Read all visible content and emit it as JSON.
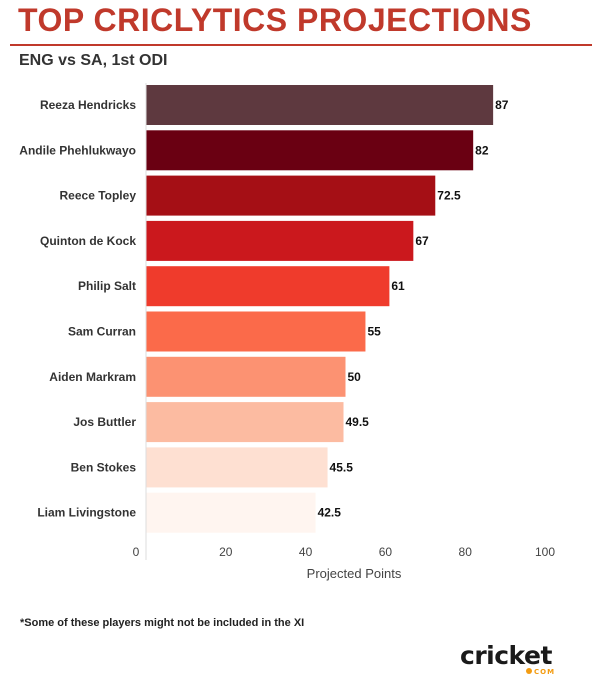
{
  "header": {
    "title": "TOP CRICLYTICS PROJECTIONS",
    "subtitle": "ENG vs SA, 1st ODI"
  },
  "chart_data": {
    "type": "bar",
    "orientation": "horizontal",
    "categories": [
      "Reeza Hendricks",
      "Andile Phehlukwayo",
      "Reece Topley",
      "Quinton de Kock",
      "Philip Salt",
      "Sam Curran",
      "Aiden Markram",
      "Jos Buttler",
      "Ben Stokes",
      "Liam Livingstone"
    ],
    "values": [
      87,
      82,
      72.5,
      67,
      61,
      55,
      50,
      49.5,
      45.5,
      42.5
    ],
    "value_labels": [
      "87",
      "82",
      "72.5",
      "67",
      "61",
      "55",
      "50",
      "49.5",
      "45.5",
      "42.5"
    ],
    "colors": [
      "#5e393f",
      "#6a0012",
      "#a50f15",
      "#cb181d",
      "#ef3b2c",
      "#fb6a4a",
      "#fc9272",
      "#fcbba1",
      "#fee0d2",
      "#fff5f0"
    ],
    "xlabel": "Projected Points",
    "ylabel": "",
    "xlim": [
      0,
      100
    ],
    "xticks": [
      "0",
      "20",
      "40",
      "60",
      "80",
      "100"
    ],
    "grid": false,
    "legend": "none"
  },
  "footer": {
    "note": "*Some of these players might not be included in the XI",
    "logo_text": "cricket",
    "logo_sub": "COM"
  }
}
